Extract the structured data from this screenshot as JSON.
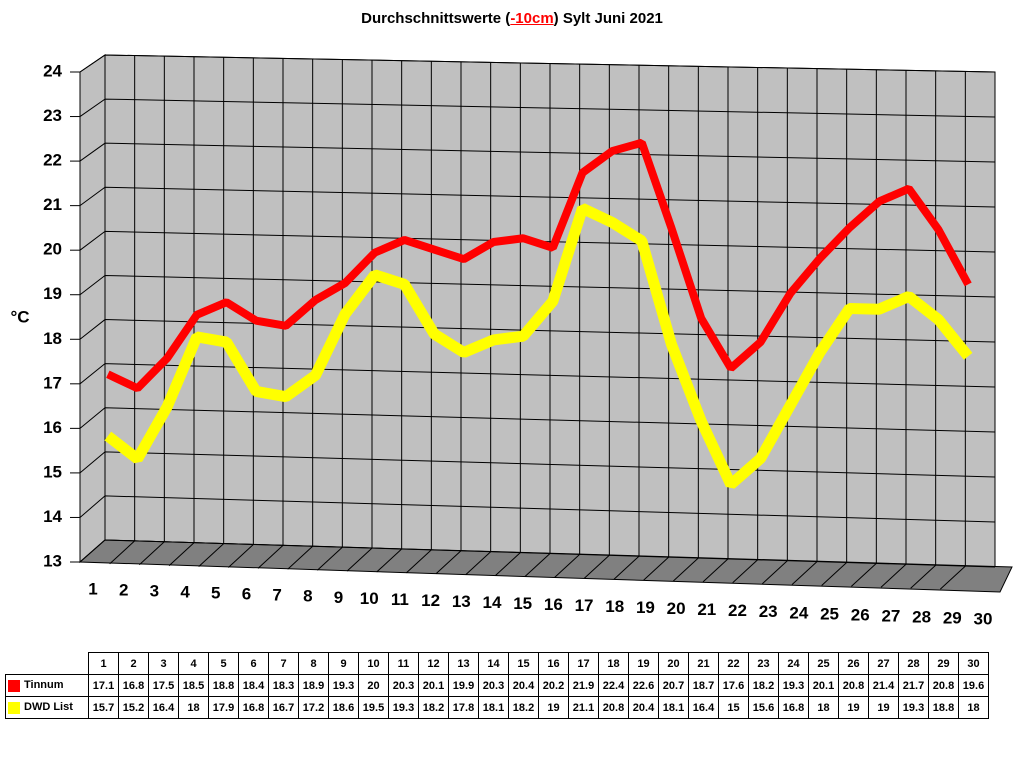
{
  "chart_data": {
    "type": "line",
    "title_parts": [
      "Durchschnittswerte (",
      "-10cm",
      ") Sylt Juni 2021"
    ],
    "y_label": "°C",
    "categories": [
      "1",
      "2",
      "3",
      "4",
      "5",
      "6",
      "7",
      "8",
      "9",
      "10",
      "11",
      "12",
      "13",
      "14",
      "15",
      "16",
      "17",
      "18",
      "19",
      "20",
      "21",
      "22",
      "23",
      "24",
      "25",
      "26",
      "27",
      "28",
      "29",
      "30"
    ],
    "series": [
      {
        "name": "Tinnum",
        "color": "#ff0000",
        "values": [
          17.1,
          16.8,
          17.5,
          18.5,
          18.8,
          18.4,
          18.3,
          18.9,
          19.3,
          20,
          20.3,
          20.1,
          19.9,
          20.3,
          20.4,
          20.2,
          21.9,
          22.4,
          22.6,
          20.7,
          18.7,
          17.6,
          18.2,
          19.3,
          20.1,
          20.8,
          21.4,
          21.7,
          20.8,
          19.6
        ]
      },
      {
        "name": "DWD List",
        "color": "#ffff00",
        "values": [
          15.7,
          15.2,
          16.4,
          18,
          17.9,
          16.8,
          16.7,
          17.2,
          18.6,
          19.5,
          19.3,
          18.2,
          17.8,
          18.1,
          18.2,
          19,
          21.1,
          20.8,
          20.4,
          18.1,
          16.4,
          15,
          15.6,
          16.8,
          18,
          19,
          19,
          19.3,
          18.8,
          18
        ]
      }
    ],
    "ylim": [
      13,
      24
    ],
    "yticks": [
      13,
      14,
      15,
      16,
      17,
      18,
      19,
      20,
      21,
      22,
      23,
      24
    ],
    "grid": true
  }
}
